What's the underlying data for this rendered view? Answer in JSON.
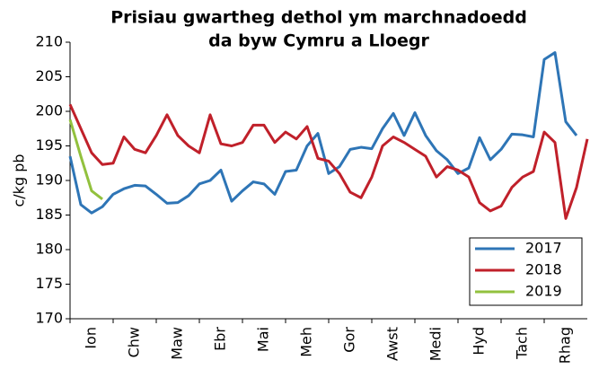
{
  "chart_data": {
    "type": "line",
    "title": [
      "Prisiau gwartheg dethol ym marchnadoedd",
      "da byw Cymru a Lloegr"
    ],
    "ylabel": "c/kg pb",
    "categories": [
      "Ion",
      "Chw",
      "Maw",
      "Ebr",
      "Mai",
      "Meh",
      "Gor",
      "Awst",
      "Medi",
      "Hyd",
      "Tach",
      "Rhag"
    ],
    "x": [
      0,
      0.25,
      0.5,
      0.75,
      1,
      1.25,
      1.5,
      1.75,
      2,
      2.25,
      2.5,
      2.75,
      3,
      3.25,
      3.5,
      3.75,
      4,
      4.25,
      4.5,
      4.75,
      5,
      5.25,
      5.5,
      5.75,
      6,
      6.25,
      6.5,
      6.75,
      7,
      7.25,
      7.5,
      7.75,
      8,
      8.25,
      8.5,
      8.75,
      9,
      9.25,
      9.5,
      9.75,
      10,
      10.25,
      10.5,
      10.75,
      11,
      11.25,
      11.5,
      11.75,
      12
    ],
    "xlim": [
      0,
      12
    ],
    "ylim": [
      170,
      210
    ],
    "yticks": [
      170,
      175,
      180,
      185,
      190,
      195,
      200,
      205,
      210
    ],
    "legend": "bottom-right",
    "series": [
      {
        "name": "2017",
        "color": "#2e75b6",
        "values": [
          193.5,
          186.5,
          185.3,
          186.2,
          188,
          188.8,
          189.3,
          189.2,
          188,
          186.7,
          186.8,
          187.8,
          189.5,
          190,
          191.5,
          187,
          188.5,
          189.8,
          189.5,
          188,
          191.3,
          191.5,
          195,
          196.8,
          191,
          192,
          194.5,
          194.8,
          194.6,
          197.5,
          199.7,
          196.5,
          199.8,
          196.5,
          194.3,
          193,
          191,
          191.8,
          196.2,
          193,
          194.5,
          196.7,
          196.6,
          196.3,
          207.5,
          208.5,
          198.5,
          196.5,
          null
        ]
      },
      {
        "name": "2018",
        "color": "#c0202a",
        "values": [
          201,
          197.5,
          194,
          192.3,
          192.5,
          196.3,
          194.5,
          194,
          196.5,
          199.5,
          196.5,
          195,
          194,
          199.5,
          195.3,
          195,
          195.5,
          198,
          198,
          195.5,
          197,
          196,
          197.8,
          193.2,
          192.8,
          191,
          188.3,
          187.5,
          190.5,
          195,
          196.3,
          195.5,
          194.5,
          193.5,
          190.5,
          192,
          191.5,
          190.5,
          186.8,
          185.6,
          186.3,
          189,
          190.5,
          191.3,
          197,
          195.5,
          184.5,
          189,
          196
        ]
      },
      {
        "name": "2019",
        "color": "#92c13e",
        "values": [
          198.8,
          193.5,
          188.5,
          187.3,
          null,
          null,
          null,
          null,
          null,
          null,
          null,
          null,
          null,
          null,
          null,
          null,
          null,
          null,
          null,
          null,
          null,
          null,
          null,
          null,
          null,
          null,
          null,
          null,
          null,
          null,
          null,
          null,
          null,
          null,
          null,
          null,
          null,
          null,
          null,
          null,
          null,
          null,
          null,
          null,
          null,
          null,
          null,
          null,
          null
        ]
      }
    ]
  }
}
